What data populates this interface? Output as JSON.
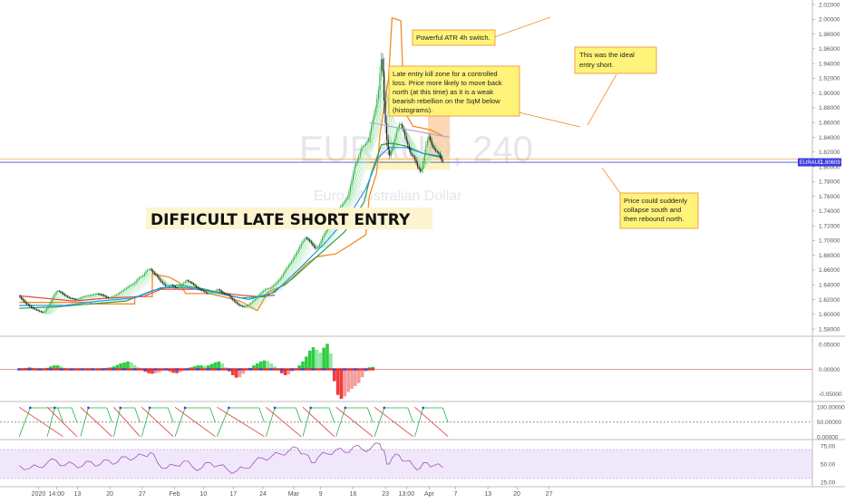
{
  "chart_data": {
    "type": "candlestick",
    "symbol": "EURAUD",
    "interval": "240",
    "symbol_description": "Euro / Australian Dollar",
    "last_price": 1.80609,
    "ylim": [
      1.575,
      2.025
    ],
    "y_ticks": [
      1.58,
      1.6,
      1.62,
      1.64,
      1.66,
      1.68,
      1.7,
      1.72,
      1.74,
      1.76,
      1.78,
      1.8,
      1.82,
      1.84,
      1.86,
      1.88,
      1.9,
      1.92,
      1.94,
      1.96,
      1.98,
      2.0,
      2.02
    ],
    "y_tick_labels": [
      "1.58000",
      "1.60000",
      "1.62000",
      "1.64000",
      "1.66000",
      "1.68000",
      "1.70000",
      "1.72000",
      "1.74000",
      "1.76000",
      "1.78000",
      "1.80000",
      "1.82000",
      "1.84000",
      "1.86000",
      "1.88000",
      "1.90000",
      "1.92000",
      "1.94000",
      "1.96000",
      "1.98000",
      "2.00000",
      "2.02000"
    ],
    "x_labels": [
      "2020",
      "14:00",
      "13",
      "20",
      "27",
      "Feb",
      "10",
      "17",
      "24",
      "Mar",
      "9",
      "16",
      "23",
      "13:00",
      "Apr",
      "7",
      "13",
      "20",
      "27"
    ],
    "x_label_positions": [
      0.0,
      20.5,
      44.5,
      81.5,
      118.5,
      155.5,
      188.5,
      222.5,
      256.5,
      291.5,
      322.5,
      359.5,
      396.5,
      420.5,
      446.5,
      476.5,
      513.5,
      546.5,
      583.5
    ],
    "x_range": [
      -22,
      611
    ],
    "price_path": [
      [
        -22,
        1.625
      ],
      [
        -14,
        1.615
      ],
      [
        -6,
        1.608
      ],
      [
        0,
        1.605
      ],
      [
        6,
        1.602
      ],
      [
        10,
        1.608
      ],
      [
        14,
        1.615
      ],
      [
        18,
        1.625
      ],
      [
        22,
        1.632
      ],
      [
        26,
        1.63
      ],
      [
        30,
        1.626
      ],
      [
        36,
        1.622
      ],
      [
        44,
        1.62
      ],
      [
        52,
        1.624
      ],
      [
        60,
        1.626
      ],
      [
        68,
        1.628
      ],
      [
        74,
        1.626
      ],
      [
        80,
        1.622
      ],
      [
        86,
        1.624
      ],
      [
        92,
        1.628
      ],
      [
        98,
        1.633
      ],
      [
        104,
        1.638
      ],
      [
        110,
        1.642
      ],
      [
        116,
        1.65
      ],
      [
        120,
        1.652
      ],
      [
        124,
        1.659
      ],
      [
        128,
        1.662
      ],
      [
        132,
        1.656
      ],
      [
        136,
        1.652
      ],
      [
        140,
        1.645
      ],
      [
        146,
        1.638
      ],
      [
        152,
        1.64
      ],
      [
        158,
        1.636
      ],
      [
        164,
        1.64
      ],
      [
        170,
        1.646
      ],
      [
        176,
        1.642
      ],
      [
        182,
        1.636
      ],
      [
        188,
        1.632
      ],
      [
        194,
        1.628
      ],
      [
        200,
        1.63
      ],
      [
        206,
        1.634
      ],
      [
        212,
        1.628
      ],
      [
        218,
        1.626
      ],
      [
        224,
        1.618
      ],
      [
        230,
        1.612
      ],
      [
        236,
        1.61
      ],
      [
        242,
        1.614
      ],
      [
        248,
        1.62
      ],
      [
        254,
        1.628
      ],
      [
        260,
        1.634
      ],
      [
        266,
        1.636
      ],
      [
        272,
        1.642
      ],
      [
        278,
        1.65
      ],
      [
        284,
        1.662
      ],
      [
        290,
        1.672
      ],
      [
        296,
        1.684
      ],
      [
        302,
        1.698
      ],
      [
        306,
        1.704
      ],
      [
        310,
        1.7
      ],
      [
        314,
        1.694
      ],
      [
        318,
        1.688
      ],
      [
        322,
        1.695
      ],
      [
        326,
        1.706
      ],
      [
        330,
        1.714
      ],
      [
        334,
        1.722
      ],
      [
        338,
        1.73
      ],
      [
        342,
        1.738
      ],
      [
        346,
        1.746
      ],
      [
        350,
        1.752
      ],
      [
        354,
        1.76
      ],
      [
        358,
        1.778
      ],
      [
        362,
        1.8
      ],
      [
        366,
        1.812
      ],
      [
        370,
        1.826
      ],
      [
        374,
        1.83
      ],
      [
        378,
        1.838
      ],
      [
        382,
        1.86
      ],
      [
        386,
        1.88
      ],
      [
        390,
        1.91
      ],
      [
        392,
        1.95
      ],
      [
        394,
        1.93
      ],
      [
        396,
        1.88
      ],
      [
        398,
        1.845
      ],
      [
        400,
        1.825
      ],
      [
        402,
        1.815
      ],
      [
        406,
        1.83
      ],
      [
        410,
        1.848
      ],
      [
        414,
        1.86
      ],
      [
        418,
        1.848
      ],
      [
        422,
        1.832
      ],
      [
        426,
        1.818
      ],
      [
        430,
        1.812
      ],
      [
        434,
        1.8
      ],
      [
        438,
        1.792
      ],
      [
        441,
        1.812
      ],
      [
        444,
        1.832
      ],
      [
        447,
        1.842
      ],
      [
        450,
        1.83
      ],
      [
        454,
        1.822
      ],
      [
        458,
        1.818
      ],
      [
        462,
        1.807
      ]
    ],
    "series": [
      {
        "name": "",
        "color": "#f28c28",
        "values": [
          [
            -22,
            1.616
          ],
          [
            60,
            1.616
          ],
          [
            60,
            1.614
          ],
          [
            110,
            1.614
          ],
          [
            110,
            1.624
          ],
          [
            130,
            1.624
          ],
          [
            130,
            1.655
          ],
          [
            150,
            1.65
          ],
          [
            162,
            1.642
          ],
          [
            168,
            1.628
          ],
          [
            196,
            1.628
          ],
          [
            196,
            1.628
          ],
          [
            230,
            1.618
          ],
          [
            250,
            1.605
          ],
          [
            262,
            1.63
          ],
          [
            282,
            1.64
          ],
          [
            306,
            1.668
          ],
          [
            318,
            1.678
          ],
          [
            340,
            1.682
          ],
          [
            360,
            1.697
          ],
          [
            374,
            1.708
          ],
          [
            378,
            1.76
          ],
          [
            386,
            1.79
          ],
          [
            388,
            1.81
          ],
          [
            390,
            1.842
          ],
          [
            400,
            1.92
          ],
          [
            404,
            2.002
          ],
          [
            414,
            1.998
          ],
          [
            418,
            1.875
          ],
          [
            428,
            1.855
          ],
          [
            448,
            1.85
          ],
          [
            462,
            1.842
          ]
        ]
      },
      {
        "name": "",
        "color": "#e8473f",
        "values": [
          [
            -22,
            1.625
          ],
          [
            40,
            1.618
          ],
          [
            80,
            1.622
          ],
          [
            120,
            1.624
          ],
          [
            140,
            1.634
          ],
          [
            180,
            1.634
          ],
          [
            230,
            1.626
          ],
          [
            250,
            1.624
          ],
          [
            270,
            1.626
          ]
        ]
      },
      {
        "name": "",
        "color": "#2e9e44",
        "values": [
          [
            -22,
            1.608
          ],
          [
            20,
            1.61
          ],
          [
            60,
            1.614
          ],
          [
            100,
            1.618
          ],
          [
            130,
            1.632
          ],
          [
            160,
            1.64
          ],
          [
            190,
            1.634
          ],
          [
            230,
            1.622
          ],
          [
            260,
            1.624
          ],
          [
            290,
            1.648
          ],
          [
            320,
            1.68
          ],
          [
            350,
            1.712
          ],
          [
            372,
            1.752
          ],
          [
            380,
            1.79
          ],
          [
            392,
            1.83
          ],
          [
            404,
            1.832
          ],
          [
            420,
            1.828
          ],
          [
            440,
            1.818
          ],
          [
            462,
            1.812
          ]
        ]
      },
      {
        "name": "",
        "color": "#2196f3",
        "values": [
          [
            -22,
            1.612
          ],
          [
            30,
            1.612
          ],
          [
            70,
            1.618
          ],
          [
            110,
            1.622
          ],
          [
            140,
            1.636
          ],
          [
            170,
            1.636
          ],
          [
            200,
            1.63
          ],
          [
            240,
            1.62
          ],
          [
            270,
            1.63
          ],
          [
            300,
            1.664
          ],
          [
            330,
            1.7
          ],
          [
            356,
            1.736
          ],
          [
            374,
            1.77
          ],
          [
            388,
            1.812
          ],
          [
            400,
            1.826
          ],
          [
            420,
            1.826
          ],
          [
            440,
            1.818
          ],
          [
            462,
            1.814
          ]
        ]
      }
    ],
    "ribbon_lines": 6,
    "horizontal_lines": [
      {
        "value": 1.80609,
        "color": "#3b3be0"
      },
      {
        "value": 1.8105,
        "color": "#f28c28"
      }
    ],
    "highlight_zones": [
      {
        "x": [
          374,
          470
        ],
        "y": [
          1.796,
          1.812
        ],
        "color": "#fff2b3"
      },
      {
        "x": [
          445,
          470
        ],
        "y": [
          1.812,
          1.872
        ],
        "color": "#fbd0a8"
      }
    ],
    "trendlines": [
      {
        "points": [
          [
            392,
            1.857
          ],
          [
            468,
            1.84
          ]
        ],
        "color": "#e89898"
      },
      {
        "points": [
          [
            378,
            1.86
          ],
          [
            470,
            1.84
          ]
        ],
        "color": "#a9a9d6"
      }
    ],
    "annotations": [
      {
        "lines": [
          "Powerful ATR 4h switch."
        ],
        "anchor": [
          404,
          2.002
        ]
      },
      {
        "lines": [
          "Late entry kill zone for a controlled",
          "loss. Price more likely to move back",
          "north (at this time) as it is a weak",
          "bearish rebellion on the SqM below",
          "(histograms)."
        ],
        "anchor": [
          424,
          1.845
        ]
      },
      {
        "lines": [
          "This was the ideal",
          "entry short."
        ],
        "anchor": [
          440,
          1.862
        ]
      },
      {
        "lines": [
          "Price could suddenly",
          "collapse south and",
          "then rebound north."
        ],
        "anchor": [
          458,
          1.8
        ]
      }
    ],
    "headline": "DIFFICULT LATE SHORT ENTRY",
    "histogram": {
      "ylim": [
        -0.06,
        0.06
      ],
      "y_ticks": [
        0.05,
        0.0,
        -0.05
      ],
      "y_tick_labels": [
        "0.05000",
        "0.00000",
        "-0.05000"
      ],
      "x_start": -22,
      "x_step": 4,
      "values": [
        0.001,
        0.002,
        0.003,
        0.004,
        0.003,
        0.001,
        -0.001,
        0.001,
        0.003,
        0.006,
        0.008,
        0.008,
        0.006,
        0.003,
        0.0005,
        -0.002,
        -0.002,
        -0.001,
        0.001,
        0.002,
        0.002,
        0.001,
        0.0005,
        0.001,
        0.002,
        0.003,
        0.004,
        0.006,
        0.009,
        0.012,
        0.014,
        0.016,
        0.014,
        0.009,
        0.004,
        -0.002,
        -0.005,
        -0.008,
        -0.009,
        -0.008,
        -0.006,
        -0.003,
        -0.002,
        -0.004,
        -0.007,
        -0.008,
        -0.006,
        -0.003,
        0.0005,
        0.004,
        0.006,
        0.008,
        0.008,
        0.007,
        0.008,
        0.011,
        0.014,
        0.016,
        0.012,
        0.004,
        -0.004,
        -0.012,
        -0.017,
        -0.016,
        -0.009,
        -0.001,
        0.003,
        0.008,
        0.012,
        0.016,
        0.018,
        0.017,
        0.012,
        0.006,
        -0.002,
        -0.008,
        -0.012,
        -0.01,
        -0.004,
        0.002,
        0.008,
        0.016,
        0.026,
        0.038,
        0.045,
        0.04,
        0.034,
        0.044,
        0.052,
        0.032,
        -0.024,
        -0.052,
        -0.06,
        -0.055,
        -0.046,
        -0.04,
        -0.034,
        -0.028,
        -0.016,
        -0.004,
        0.004,
        0.005
      ]
    },
    "stochastic": {
      "ylim": [
        -5,
        110
      ],
      "y_ticks": [
        100,
        50,
        0
      ],
      "y_tick_labels": [
        "100.00000",
        "50.00000",
        "0.00000"
      ],
      "dashed_level": 50,
      "cycles": [
        [
          -22,
          28
        ],
        [
          10,
          44
        ],
        [
          48,
          84
        ],
        [
          86,
          116
        ],
        [
          118,
          154
        ],
        [
          156,
          202
        ],
        [
          204,
          258
        ],
        [
          260,
          300
        ],
        [
          302,
          338
        ],
        [
          340,
          382
        ],
        [
          384,
          428
        ],
        [
          430,
          468
        ]
      ]
    },
    "rsi": {
      "ylim": [
        20,
        80
      ],
      "y_ticks": [
        75,
        50,
        25
      ],
      "y_tick_labels": [
        "75.00",
        "50.00",
        "25.00"
      ],
      "band": [
        30,
        70
      ],
      "values": [
        [
          -22,
          48
        ],
        [
          -10,
          44
        ],
        [
          0,
          46
        ],
        [
          10,
          52
        ],
        [
          20,
          55
        ],
        [
          30,
          48
        ],
        [
          40,
          50
        ],
        [
          50,
          47
        ],
        [
          60,
          53
        ],
        [
          70,
          49
        ],
        [
          80,
          55
        ],
        [
          90,
          52
        ],
        [
          100,
          60
        ],
        [
          110,
          58
        ],
        [
          120,
          62
        ],
        [
          128,
          66
        ],
        [
          136,
          52
        ],
        [
          146,
          44
        ],
        [
          156,
          48
        ],
        [
          166,
          54
        ],
        [
          176,
          46
        ],
        [
          186,
          44
        ],
        [
          196,
          52
        ],
        [
          206,
          48
        ],
        [
          216,
          42
        ],
        [
          226,
          40
        ],
        [
          236,
          44
        ],
        [
          246,
          52
        ],
        [
          256,
          58
        ],
        [
          266,
          60
        ],
        [
          276,
          64
        ],
        [
          286,
          68
        ],
        [
          296,
          72
        ],
        [
          304,
          64
        ],
        [
          312,
          52
        ],
        [
          320,
          60
        ],
        [
          330,
          64
        ],
        [
          340,
          70
        ],
        [
          350,
          66
        ],
        [
          360,
          74
        ],
        [
          370,
          70
        ],
        [
          380,
          72
        ],
        [
          390,
          78
        ],
        [
          394,
          70
        ],
        [
          398,
          50
        ],
        [
          404,
          58
        ],
        [
          412,
          62
        ],
        [
          420,
          54
        ],
        [
          428,
          48
        ],
        [
          436,
          44
        ],
        [
          444,
          52
        ],
        [
          452,
          48
        ],
        [
          462,
          45
        ]
      ]
    }
  }
}
